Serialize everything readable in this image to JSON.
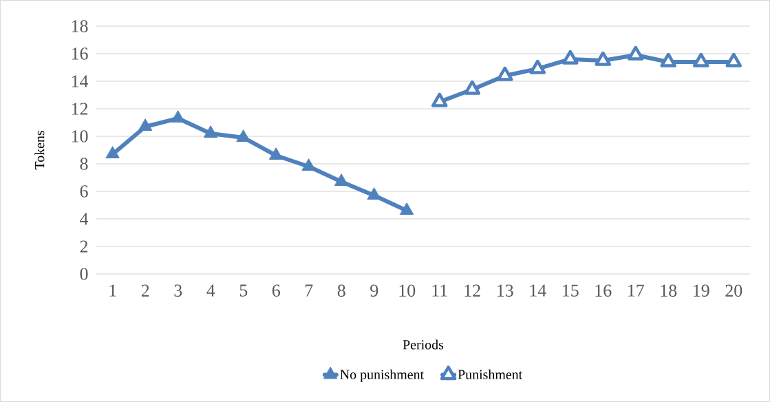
{
  "chart_data": {
    "type": "line",
    "xlabel": "Periods",
    "ylabel": "Tokens",
    "categories": [
      "1",
      "2",
      "3",
      "4",
      "5",
      "6",
      "7",
      "8",
      "9",
      "10",
      "11",
      "12",
      "13",
      "14",
      "15",
      "16",
      "17",
      "18",
      "19",
      "20"
    ],
    "ylim": [
      0,
      18
    ],
    "yticks": [
      0,
      2,
      4,
      6,
      8,
      10,
      12,
      14,
      16,
      18
    ],
    "grid": "y",
    "legend": "bottom",
    "marker": "triangle",
    "line_style": "solid",
    "series": [
      {
        "name": "No punishment",
        "color": "#4f81bd",
        "values": [
          8.7,
          10.7,
          11.3,
          10.2,
          9.9,
          8.6,
          7.8,
          6.7,
          5.7,
          4.6,
          null,
          null,
          null,
          null,
          null,
          null,
          null,
          null,
          null,
          null
        ]
      },
      {
        "name": "Punishment",
        "color": "#4f81bd",
        "values": [
          null,
          null,
          null,
          null,
          null,
          null,
          null,
          null,
          null,
          null,
          12.5,
          13.4,
          14.4,
          14.9,
          15.6,
          15.5,
          15.9,
          15.4,
          15.4,
          15.4
        ]
      }
    ]
  }
}
